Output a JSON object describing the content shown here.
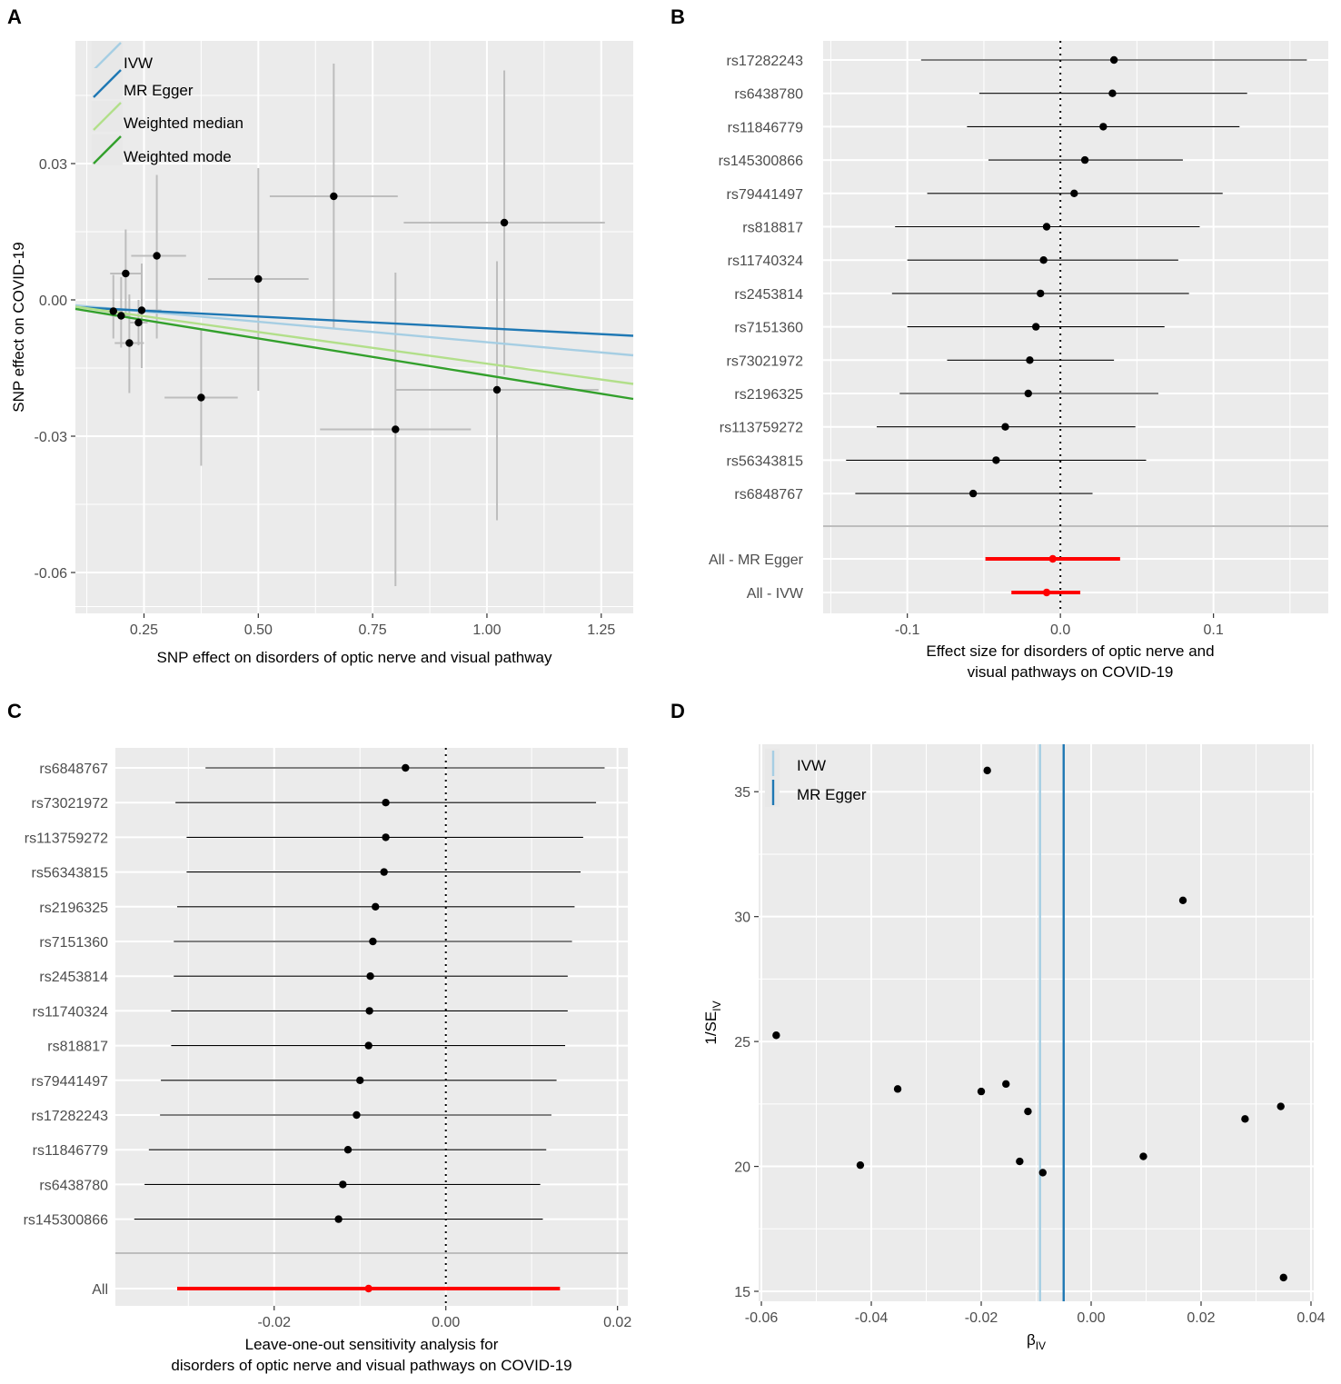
{
  "panels": [
    {
      "id": "A",
      "label": "A"
    },
    {
      "id": "B",
      "label": "B"
    },
    {
      "id": "C",
      "label": "C"
    },
    {
      "id": "D",
      "label": "D"
    }
  ],
  "chart_data": [
    {
      "panel": "A",
      "type": "scatter",
      "title": "",
      "xlabel": "SNP effect on disorders of optic nerve and visual pathway",
      "ylabel": "SNP effect on COVID-19",
      "xlim": [
        0.1,
        1.32
      ],
      "ylim": [
        -0.069,
        0.057
      ],
      "xticks": [
        0.25,
        0.5,
        0.75,
        1.0
      ],
      "xtick_labels": [
        "0.25",
        "0.50",
        "0.75",
        "1.00"
      ],
      "xticks2": [
        1.25
      ],
      "xtick_labels2": [
        "1.25"
      ],
      "yticks": [
        0.03,
        0.0,
        -0.03,
        -0.06
      ],
      "ytick_labels": [
        "0.03",
        "0.00",
        "-0.03",
        "-0.06"
      ],
      "points": [
        {
          "x": 0.183,
          "y": -0.0025,
          "xlo": 0.163,
          "xhi": 0.203,
          "ylo": -0.0085,
          "yhi": 0.0055
        },
        {
          "x": 0.2,
          "y": -0.0035,
          "xlo": 0.18,
          "xhi": 0.22,
          "ylo": -0.0105,
          "yhi": 0.005
        },
        {
          "x": 0.21,
          "y": 0.0058,
          "xlo": 0.176,
          "xhi": 0.244,
          "ylo": -0.004,
          "yhi": 0.0155
        },
        {
          "x": 0.218,
          "y": -0.0095,
          "xlo": 0.186,
          "xhi": 0.25,
          "ylo": -0.0205,
          "yhi": 0.0012
        },
        {
          "x": 0.238,
          "y": -0.005,
          "xlo": 0.218,
          "xhi": 0.258,
          "ylo": -0.01,
          "yhi": 0.0
        },
        {
          "x": 0.245,
          "y": -0.0023,
          "xlo": 0.21,
          "xhi": 0.288,
          "ylo": -0.015,
          "yhi": 0.008
        },
        {
          "x": 0.278,
          "y": 0.0097,
          "xlo": 0.222,
          "xhi": 0.342,
          "ylo": -0.0085,
          "yhi": 0.0275
        },
        {
          "x": 0.375,
          "y": -0.0215,
          "xlo": 0.295,
          "xhi": 0.455,
          "ylo": -0.0365,
          "yhi": -0.0065
        },
        {
          "x": 0.5,
          "y": 0.0046,
          "xlo": 0.39,
          "xhi": 0.61,
          "ylo": -0.02,
          "yhi": 0.029
        },
        {
          "x": 0.665,
          "y": 0.0228,
          "xlo": 0.525,
          "xhi": 0.805,
          "ylo": -0.0065,
          "yhi": 0.052
        },
        {
          "x": 0.8,
          "y": -0.0285,
          "xlo": 0.635,
          "xhi": 0.965,
          "ylo": -0.063,
          "yhi": 0.006
        },
        {
          "x": 1.022,
          "y": -0.0198,
          "xlo": 0.8,
          "xhi": 1.244,
          "ylo": -0.0485,
          "yhi": 0.0085
        },
        {
          "x": 1.038,
          "y": 0.017,
          "xlo": 0.818,
          "xhi": 1.258,
          "ylo": -0.0165,
          "yhi": 0.0505
        }
      ],
      "lines": [
        {
          "name": "IVW",
          "color": "#a6cee3",
          "y_at_xmin": -0.0012,
          "y_at_xmax": -0.0122
        },
        {
          "name": "MR Egger",
          "color": "#1f78b4",
          "y_at_xmin": -0.0016,
          "y_at_xmax": -0.0079
        },
        {
          "name": "Weighted median",
          "color": "#b2df8a",
          "y_at_xmin": -0.0015,
          "y_at_xmax": -0.0185
        },
        {
          "name": "Weighted mode",
          "color": "#33a02c",
          "y_at_xmin": -0.002,
          "y_at_xmax": -0.0218
        }
      ],
      "legend": [
        {
          "label": "IVW",
          "color": "#a6cee3"
        },
        {
          "label": "MR Egger",
          "color": "#1f78b4"
        },
        {
          "label": "Weighted median",
          "color": "#b2df8a"
        },
        {
          "label": "Weighted mode",
          "color": "#33a02c"
        }
      ],
      "legend_position": "top-left"
    },
    {
      "panel": "B",
      "type": "forest",
      "xlabel_lines": [
        "Effect size for disorders of optic nerve and",
        "visual pathways on COVID-19"
      ],
      "xlim": [
        -0.155,
        0.175
      ],
      "xticks": [
        -0.1,
        0.0,
        0.1
      ],
      "xtick_labels": [
        "-0.1",
        "0.0",
        "0.1"
      ],
      "rows": [
        {
          "label": "rs17282243",
          "est": 0.035,
          "lo": -0.091,
          "hi": 0.161
        },
        {
          "label": "rs6438780",
          "est": 0.034,
          "lo": -0.053,
          "hi": 0.122
        },
        {
          "label": "rs11846779",
          "est": 0.028,
          "lo": -0.061,
          "hi": 0.117
        },
        {
          "label": "rs145300866",
          "est": 0.016,
          "lo": -0.047,
          "hi": 0.08
        },
        {
          "label": "rs79441497",
          "est": 0.009,
          "lo": -0.087,
          "hi": 0.106
        },
        {
          "label": "rs818817",
          "est": -0.009,
          "lo": -0.108,
          "hi": 0.091
        },
        {
          "label": "rs11740324",
          "est": -0.011,
          "lo": -0.1,
          "hi": 0.077
        },
        {
          "label": "rs2453814",
          "est": -0.013,
          "lo": -0.11,
          "hi": 0.084
        },
        {
          "label": "rs7151360",
          "est": -0.016,
          "lo": -0.1,
          "hi": 0.068
        },
        {
          "label": "rs73021972",
          "est": -0.02,
          "lo": -0.074,
          "hi": 0.035
        },
        {
          "label": "rs2196325",
          "est": -0.021,
          "lo": -0.105,
          "hi": 0.064
        },
        {
          "label": "rs113759272",
          "est": -0.036,
          "lo": -0.12,
          "hi": 0.049
        },
        {
          "label": "rs56343815",
          "est": -0.042,
          "lo": -0.14,
          "hi": 0.056
        },
        {
          "label": "rs6848767",
          "est": -0.057,
          "lo": -0.134,
          "hi": 0.021
        }
      ],
      "summary_rows": [
        {
          "label": "All - MR Egger",
          "est": -0.005,
          "lo": -0.049,
          "hi": 0.039
        },
        {
          "label": "All - IVW",
          "est": -0.009,
          "lo": -0.032,
          "hi": 0.013
        }
      ]
    },
    {
      "panel": "C",
      "type": "forest",
      "xlabel_lines": [
        "Leave-one-out sensitivity analysis for",
        "disorders of optic nerve and visual pathways on COVID-19"
      ],
      "xlim": [
        -0.0385,
        0.0212
      ],
      "xticks": [
        -0.02,
        0.0,
        0.02
      ],
      "xtick_labels": [
        "-0.02",
        "0.00",
        "0.02"
      ],
      "rows": [
        {
          "label": "rs6848767",
          "est": -0.0047,
          "lo": -0.028,
          "hi": 0.0185
        },
        {
          "label": "rs73021972",
          "est": -0.007,
          "lo": -0.0315,
          "hi": 0.0175
        },
        {
          "label": "rs113759272",
          "est": -0.007,
          "lo": -0.0302,
          "hi": 0.016
        },
        {
          "label": "rs56343815",
          "est": -0.0072,
          "lo": -0.0302,
          "hi": 0.0157
        },
        {
          "label": "rs2196325",
          "est": -0.0082,
          "lo": -0.0313,
          "hi": 0.015
        },
        {
          "label": "rs7151360",
          "est": -0.0085,
          "lo": -0.0317,
          "hi": 0.0147
        },
        {
          "label": "rs2453814",
          "est": -0.0088,
          "lo": -0.0317,
          "hi": 0.0142
        },
        {
          "label": "rs11740324",
          "est": -0.0089,
          "lo": -0.032,
          "hi": 0.0142
        },
        {
          "label": "rs818817",
          "est": -0.009,
          "lo": -0.032,
          "hi": 0.0139
        },
        {
          "label": "rs79441497",
          "est": -0.01,
          "lo": -0.0332,
          "hi": 0.0129
        },
        {
          "label": "rs17282243",
          "est": -0.0104,
          "lo": -0.0333,
          "hi": 0.0123
        },
        {
          "label": "rs11846779",
          "est": -0.0114,
          "lo": -0.0346,
          "hi": 0.0117
        },
        {
          "label": "rs6438780",
          "est": -0.012,
          "lo": -0.0351,
          "hi": 0.011
        },
        {
          "label": "rs145300866",
          "est": -0.0125,
          "lo": -0.0363,
          "hi": 0.0113
        }
      ],
      "summary_rows": [
        {
          "label": "All",
          "est": -0.009,
          "lo": -0.0313,
          "hi": 0.0133
        }
      ]
    },
    {
      "panel": "D",
      "type": "scatter",
      "xlabel": "β",
      "xlabel_sub": "IV",
      "ylabel": "1/SE",
      "ylabel_sub": "IV",
      "xlim": [
        -0.0605,
        0.0405
      ],
      "ylim": [
        14.6,
        36.9
      ],
      "xticks": [
        -0.06,
        -0.04,
        -0.02,
        0.0,
        0.02,
        0.04
      ],
      "xtick_labels": [
        "-0.06",
        "-0.04",
        "-0.02",
        "0.00",
        "0.02",
        "0.04"
      ],
      "yticks": [
        15,
        20,
        25,
        30,
        35
      ],
      "ytick_labels": [
        "15",
        "20",
        "25",
        "30",
        "35"
      ],
      "points": [
        {
          "x": -0.0189,
          "y": 35.85
        },
        {
          "x": 0.0167,
          "y": 30.65
        },
        {
          "x": -0.0573,
          "y": 25.25
        },
        {
          "x": -0.0352,
          "y": 23.1
        },
        {
          "x": -0.02,
          "y": 23.0
        },
        {
          "x": -0.0155,
          "y": 23.3
        },
        {
          "x": -0.0115,
          "y": 22.2
        },
        {
          "x": -0.042,
          "y": 20.05
        },
        {
          "x": -0.013,
          "y": 20.2
        },
        {
          "x": -0.0088,
          "y": 19.75
        },
        {
          "x": 0.0095,
          "y": 20.4
        },
        {
          "x": 0.028,
          "y": 21.9
        },
        {
          "x": 0.0345,
          "y": 22.4
        },
        {
          "x": 0.035,
          "y": 15.55
        }
      ],
      "vlines": [
        {
          "name": "IVW",
          "x": -0.0093,
          "color": "#a6cee3"
        },
        {
          "name": "MR Egger",
          "x": -0.005,
          "color": "#1f78b4"
        }
      ],
      "legend": [
        {
          "label": "IVW",
          "color": "#a6cee3"
        },
        {
          "label": "MR Egger",
          "color": "#1f78b4"
        }
      ],
      "legend_position": "top-left"
    }
  ]
}
